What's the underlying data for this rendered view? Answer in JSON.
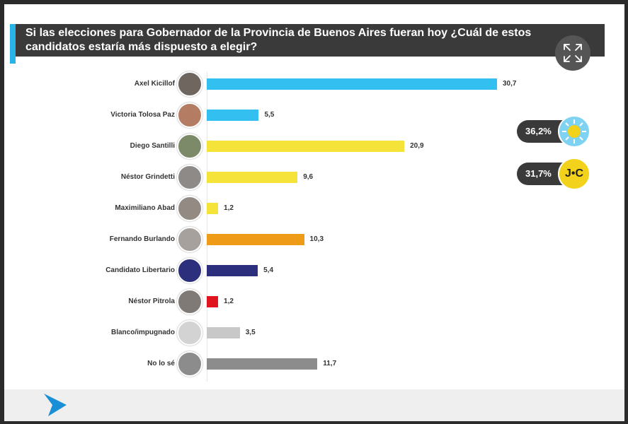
{
  "header": {
    "title": "Si las elecciones para Gobernador de la Provincia de Buenos Aires fueran hoy ¿Cuál de estos candidatos estaría más dispuesto a elegir?"
  },
  "badges": [
    {
      "value": "36,2%",
      "icon": "sun-logo-icon",
      "color": "#7fd3f2"
    },
    {
      "value": "31,7%",
      "icon": "jc-logo-icon",
      "color": "#f2d21b",
      "logo_text": "J•C"
    }
  ],
  "chart_data": {
    "type": "bar",
    "orientation": "horizontal",
    "title": "Si las elecciones para Gobernador de la Provincia de Buenos Aires fueran hoy ¿Cuál de estos candidatos estaría más dispuesto a elegir?",
    "xlabel": "",
    "ylabel": "",
    "xlim": [
      0,
      30.7
    ],
    "grid": false,
    "categories": [
      "Axel Kicillof",
      "Victoria Tolosa Paz",
      "Diego Santilli",
      "Néstor Grindetti",
      "Maximiliano Abad",
      "Fernando Burlando",
      "Candidato Libertario",
      "Néstor Pitrola",
      "Blanco/impugnado",
      "No lo sé"
    ],
    "values": [
      30.7,
      5.5,
      20.9,
      9.6,
      1.2,
      10.3,
      5.4,
      1.2,
      3.5,
      11.7
    ],
    "value_labels": [
      "30,7",
      "5,5",
      "20,9",
      "9,6",
      "1,2",
      "10,3",
      "5,4",
      "1,2",
      "3,5",
      "11,7"
    ],
    "colors": [
      "#33bff0",
      "#33bff0",
      "#f5e33a",
      "#f5e33a",
      "#f5e33a",
      "#ee9c17",
      "#2b2f7c",
      "#e0141e",
      "#c8c8c8",
      "#8c8c8c"
    ],
    "avatars": [
      "photo",
      "photo",
      "photo",
      "photo",
      "photo",
      "photo",
      "circle",
      "photo",
      "circle",
      "circle"
    ],
    "avatar_colors": [
      "#6f6660",
      "#b47d63",
      "#7d8a69",
      "#8e8a87",
      "#928a83",
      "#a6a19c",
      "#2b2f7c",
      "#7f7a76",
      "#d3d3d3",
      "#8c8c8c"
    ]
  }
}
